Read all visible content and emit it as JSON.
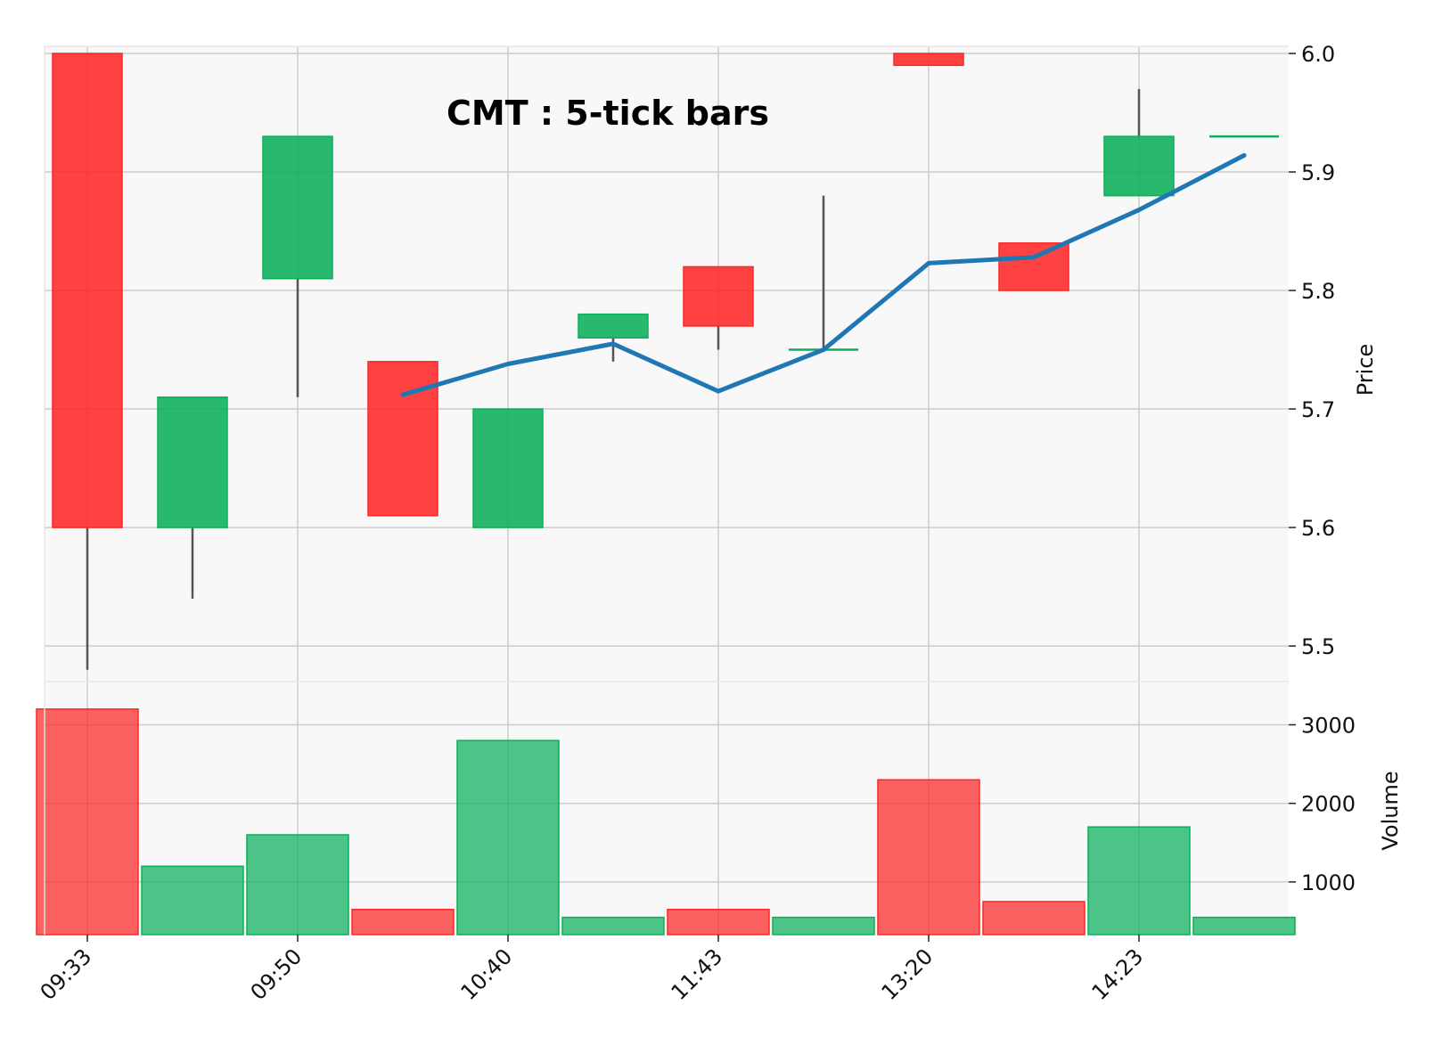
{
  "chart_data": {
    "type": "candlestick",
    "title": "CMT : 5-tick bars",
    "price_axis": {
      "label": "Price",
      "ylim": [
        5.47,
        6.006
      ],
      "ticks": [
        5.5,
        5.6,
        5.7,
        5.8,
        5.9,
        6.0
      ],
      "tick_labels": [
        "5.5",
        "5.6",
        "5.7",
        "5.8",
        "5.9",
        "6.0"
      ],
      "position": "right"
    },
    "volume_axis": {
      "label": "Volume",
      "ylim": [
        330,
        3550
      ],
      "ticks": [
        1000,
        2000,
        3000
      ],
      "tick_labels": [
        "1000",
        "2000",
        "3000"
      ],
      "position": "right"
    },
    "x_tick_labels": [
      "09:33",
      "09:50",
      "10:40",
      "11:43",
      "13:20",
      "14:23"
    ],
    "x_tick_bar_index": [
      0,
      2,
      4,
      6,
      8,
      10
    ],
    "bars": [
      {
        "open": 6.0,
        "high": 6.0,
        "low": 5.48,
        "close": 5.6,
        "volume": 3200
      },
      {
        "open": 5.6,
        "high": 5.71,
        "low": 5.54,
        "close": 5.71,
        "volume": 1200
      },
      {
        "open": 5.81,
        "high": 5.93,
        "low": 5.71,
        "close": 5.93,
        "volume": 1600
      },
      {
        "open": 5.74,
        "high": 5.74,
        "low": 5.61,
        "close": 5.61,
        "volume": 650
      },
      {
        "open": 5.6,
        "high": 5.7,
        "low": 5.6,
        "close": 5.7,
        "volume": 2800
      },
      {
        "open": 5.76,
        "high": 5.78,
        "low": 5.74,
        "close": 5.78,
        "volume": 550
      },
      {
        "open": 5.82,
        "high": 5.82,
        "low": 5.75,
        "close": 5.77,
        "volume": 650
      },
      {
        "open": 5.75,
        "high": 5.88,
        "low": 5.75,
        "close": 5.75,
        "volume": 550
      },
      {
        "open": 6.0,
        "high": 6.0,
        "low": 5.99,
        "close": 5.99,
        "volume": 2300
      },
      {
        "open": 5.84,
        "high": 5.84,
        "low": 5.8,
        "close": 5.8,
        "volume": 750
      },
      {
        "open": 5.88,
        "high": 5.97,
        "low": 5.88,
        "close": 5.93,
        "volume": 1700
      },
      {
        "open": 5.93,
        "high": 5.93,
        "low": 5.93,
        "close": 5.93,
        "volume": 550
      }
    ],
    "moving_average": {
      "start_index": 3,
      "values": [
        5.712,
        5.738,
        5.755,
        5.715,
        5.75,
        5.823,
        5.828,
        5.868,
        5.914
      ]
    },
    "colors": {
      "up": "#0aaf5b",
      "down": "#fe2727",
      "wick": "#555555",
      "ma": "#1f77b4",
      "face": "#f8f8f8",
      "grid": "#cccccc"
    },
    "grid": true
  }
}
